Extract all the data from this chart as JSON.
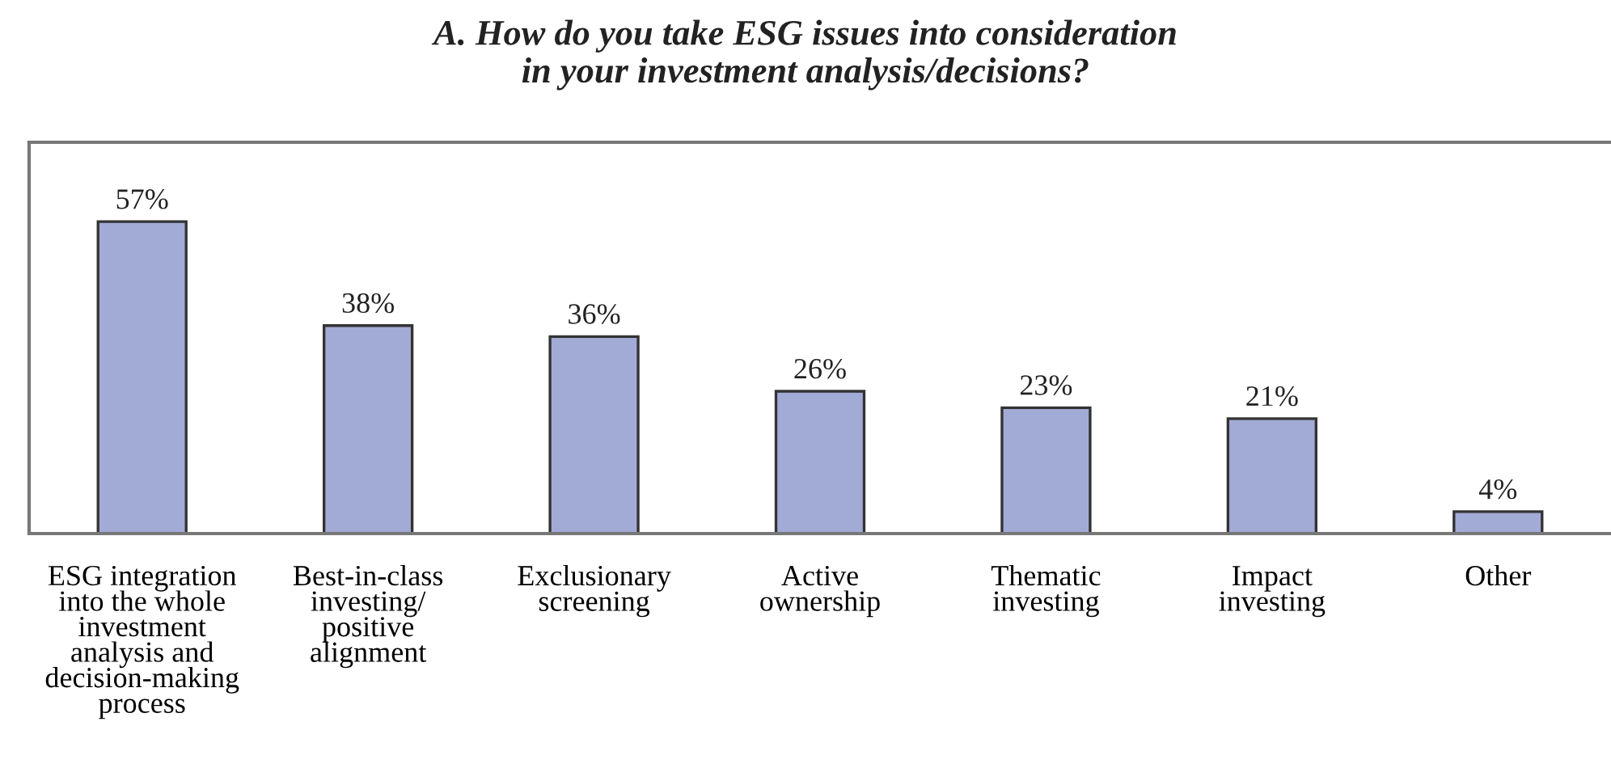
{
  "chart_data": {
    "type": "bar",
    "title": "A. How do you take ESG issues into consideration\nin your investment analysis/decisions?",
    "categories": [
      "ESG integration\ninto the whole\ninvestment\nanalysis and\ndecision-making\nprocess",
      "Best-in-class\ninvesting/\npositive\nalignment",
      "Exclusionary\nscreening",
      "Active\nownership",
      "Thematic\ninvesting",
      "Impact\ninvesting",
      "Other"
    ],
    "values": [
      57,
      38,
      36,
      26,
      23,
      21,
      4
    ],
    "value_labels": [
      "57%",
      "38%",
      "36%",
      "26%",
      "23%",
      "21%",
      "4%"
    ],
    "color": "#a2aad6",
    "ylim": [
      0,
      71.5
    ],
    "tick_labels": "x",
    "grid": false,
    "legend": false
  }
}
